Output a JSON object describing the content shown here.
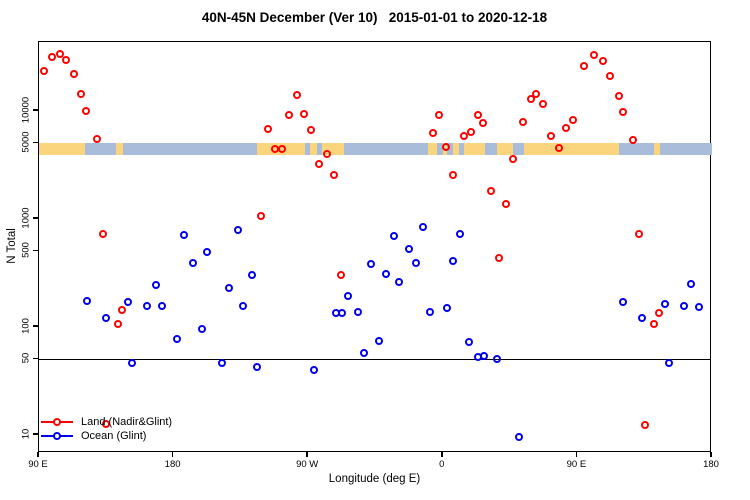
{
  "chart_data": {
    "type": "scatter",
    "title": "40N-45N December (Ver 10)   2015-01-01 to 2020-12-18",
    "xlabel": "Longitude (deg E)",
    "ylabel": "N Total",
    "x_axis": {
      "range_deg_e": [
        90,
        540
      ],
      "ticks": [
        {
          "lon": 90,
          "label": "90 E"
        },
        {
          "lon": 180,
          "label": "180"
        },
        {
          "lon": 270,
          "label": "90 W"
        },
        {
          "lon": 360,
          "label": "0"
        },
        {
          "lon": 450,
          "label": "90 E"
        },
        {
          "lon": 540,
          "label": "180"
        }
      ]
    },
    "y_axis": {
      "scale": "log",
      "range": [
        6.8,
        43500
      ],
      "ticks": [
        {
          "value": 10,
          "label": "10"
        },
        {
          "value": 50,
          "label": "50"
        },
        {
          "value": 100,
          "label": "100"
        },
        {
          "value": 500,
          "label": "500"
        },
        {
          "value": 1000,
          "label": "1000"
        },
        {
          "value": 5000,
          "label": "5000"
        },
        {
          "value": 10000,
          "label": "10000"
        }
      ]
    },
    "reference_line": {
      "value": 50,
      "color": "#000000"
    },
    "map_band": {
      "top_value": 5050,
      "bottom_value": 3880,
      "land_color": "#FAD57E",
      "ocean_color": "#A9BCD9",
      "segments": [
        [
          90,
          121,
          "land"
        ],
        [
          121,
          141.5,
          "ocean"
        ],
        [
          141.5,
          146,
          "land"
        ],
        [
          146,
          235.5,
          "ocean"
        ],
        [
          235.5,
          268,
          "land"
        ],
        [
          268,
          271,
          "ocean"
        ],
        [
          271,
          276,
          "land"
        ],
        [
          276,
          279,
          "ocean"
        ],
        [
          279,
          294,
          "land"
        ],
        [
          294,
          350,
          "ocean"
        ],
        [
          350,
          356,
          "land"
        ],
        [
          356,
          360,
          "ocean"
        ],
        [
          360,
          363,
          "land"
        ],
        [
          363,
          367,
          "ocean"
        ],
        [
          367,
          371,
          "land"
        ],
        [
          371,
          374,
          "ocean"
        ],
        [
          374,
          388,
          "land"
        ],
        [
          388,
          396,
          "ocean"
        ],
        [
          396,
          407,
          "land"
        ],
        [
          407,
          414,
          "ocean"
        ],
        [
          414,
          478,
          "land"
        ],
        [
          478,
          501,
          "ocean"
        ],
        [
          501,
          505.5,
          "land"
        ],
        [
          505.5,
          540,
          "ocean"
        ]
      ]
    },
    "legend": {
      "items": [
        {
          "label": "Land (Nadir&Glint)",
          "color": "#FF0000"
        },
        {
          "label": "Ocean (Glint)",
          "color": "#0000EE"
        }
      ]
    },
    "series": [
      {
        "name": "Land (Nadir&Glint)",
        "color": "#FF0000",
        "points": [
          [
            93.3,
            23400
          ],
          [
            98.7,
            31600
          ],
          [
            104.0,
            33700
          ],
          [
            108.1,
            29700
          ],
          [
            113.4,
            22000
          ],
          [
            118.1,
            14300
          ],
          [
            121.4,
            10000
          ],
          [
            128.8,
            5500
          ],
          [
            132.8,
            730
          ],
          [
            134.8,
            12.6
          ],
          [
            142.8,
            107
          ],
          [
            145.5,
            144
          ],
          [
            238.4,
            1070
          ],
          [
            243.1,
            6800
          ],
          [
            247.8,
            4450
          ],
          [
            252.5,
            4450
          ],
          [
            257.2,
            9180
          ],
          [
            262.5,
            14100
          ],
          [
            267.2,
            9380
          ],
          [
            271.9,
            6670
          ],
          [
            277.2,
            3230
          ],
          [
            282.6,
            4000
          ],
          [
            287.3,
            2560
          ],
          [
            291.9,
            303
          ],
          [
            353.5,
            6250
          ],
          [
            357.5,
            9180
          ],
          [
            362.2,
            4640
          ],
          [
            366.9,
            2560
          ],
          [
            374.2,
            5870
          ],
          [
            378.9,
            6400
          ],
          [
            383.6,
            9180
          ],
          [
            386.9,
            7750
          ],
          [
            392.3,
            1820
          ],
          [
            397.6,
            435
          ],
          [
            402.3,
            1380
          ],
          [
            407.0,
            3600
          ],
          [
            413.6,
            7900
          ],
          [
            419.0,
            12900
          ],
          [
            422.3,
            14400
          ],
          [
            427.0,
            11600
          ],
          [
            432.3,
            5870
          ],
          [
            437.7,
            4540
          ],
          [
            442.4,
            6970
          ],
          [
            447.0,
            8260
          ],
          [
            454.4,
            26100
          ],
          [
            461.1,
            33000
          ],
          [
            467.1,
            29000
          ],
          [
            471.8,
            21100
          ],
          [
            477.8,
            13800
          ],
          [
            480.5,
            9770
          ],
          [
            487.2,
            5380
          ],
          [
            491.2,
            730
          ],
          [
            495.3,
            12.4
          ],
          [
            501.3,
            107
          ],
          [
            504.6,
            135
          ]
        ]
      },
      {
        "name": "Ocean (Glint)",
        "color": "#0000EE",
        "points": [
          [
            122.1,
            174
          ],
          [
            134.8,
            121
          ],
          [
            149.5,
            170
          ],
          [
            152.2,
            46
          ],
          [
            162.2,
            156
          ],
          [
            168.2,
            245
          ],
          [
            172.2,
            156
          ],
          [
            182.3,
            77
          ],
          [
            187.0,
            711
          ],
          [
            193.0,
            391
          ],
          [
            199.0,
            96
          ],
          [
            202.3,
            494
          ],
          [
            212.4,
            46
          ],
          [
            217.0,
            230
          ],
          [
            223.1,
            790
          ],
          [
            226.4,
            156
          ],
          [
            232.4,
            303
          ],
          [
            235.8,
            43
          ],
          [
            273.9,
            40
          ],
          [
            288.6,
            135
          ],
          [
            292.6,
            135
          ],
          [
            296.6,
            194
          ],
          [
            303.3,
            137
          ],
          [
            307.3,
            57
          ],
          [
            312.0,
            383
          ],
          [
            317.3,
            74
          ],
          [
            322.0,
            310
          ],
          [
            327.4,
            700
          ],
          [
            330.7,
            260
          ],
          [
            337.4,
            527
          ],
          [
            342.1,
            391
          ],
          [
            346.8,
            843
          ],
          [
            351.5,
            137
          ],
          [
            362.9,
            150
          ],
          [
            366.9,
            408
          ],
          [
            371.5,
            730
          ],
          [
            377.5,
            73
          ],
          [
            383.6,
            53
          ],
          [
            387.6,
            54
          ],
          [
            396.3,
            50
          ],
          [
            411.0,
            9.6
          ],
          [
            480.5,
            170
          ],
          [
            493.2,
            121
          ],
          [
            508.6,
            163
          ],
          [
            511.3,
            46
          ],
          [
            521.3,
            156
          ],
          [
            526.0,
            250
          ],
          [
            531.3,
            153
          ]
        ]
      }
    ]
  }
}
